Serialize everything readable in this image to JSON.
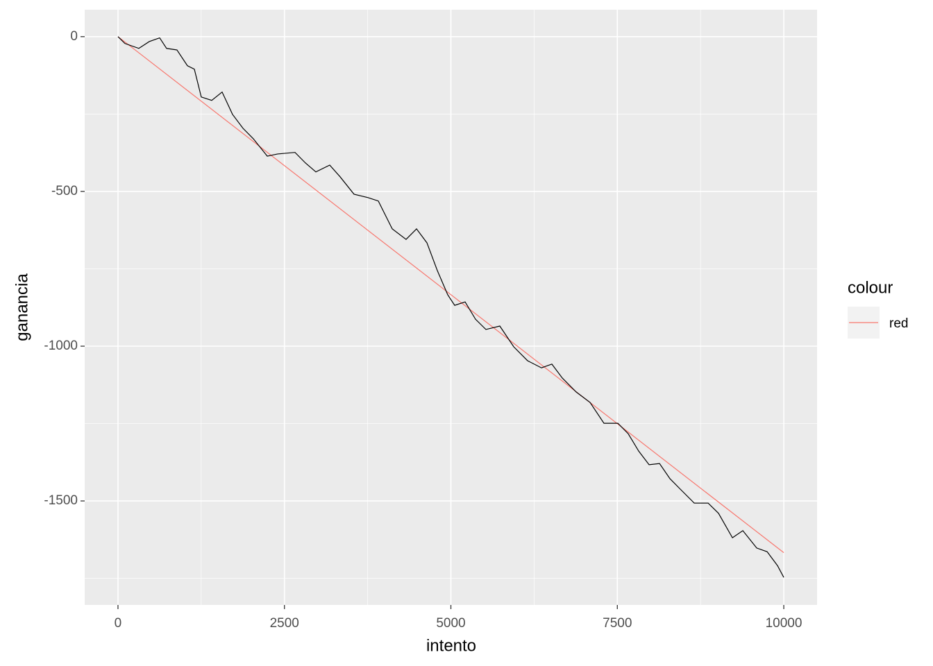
{
  "chart_data": {
    "type": "line",
    "x_label": "intento",
    "y_label": "ganancia",
    "x": [
      0,
      104,
      313,
      469,
      626,
      730,
      886,
      1043,
      1147,
      1251,
      1408,
      1564,
      1720,
      1877,
      2033,
      2242,
      2398,
      2659,
      2815,
      2972,
      3180,
      3337,
      3545,
      3754,
      3910,
      4119,
      4327,
      4484,
      4640,
      4797,
      4953,
      5057,
      5214,
      5370,
      5526,
      5735,
      5944,
      6152,
      6361,
      6517,
      6674,
      6882,
      7091,
      7299,
      7508,
      7664,
      7821,
      7977,
      8134,
      8290,
      8446,
      8655,
      8864,
      9020,
      9229,
      9385,
      9593,
      9750,
      9906,
      10000
    ],
    "values": [
      0,
      -22,
      -38,
      -16,
      -4,
      -38,
      -43,
      -94,
      -105,
      -195,
      -206,
      -179,
      -251,
      -296,
      -330,
      -386,
      -379,
      -374,
      -408,
      -437,
      -415,
      -453,
      -509,
      -520,
      -531,
      -621,
      -655,
      -621,
      -666,
      -756,
      -834,
      -868,
      -857,
      -913,
      -946,
      -935,
      -1002,
      -1047,
      -1070,
      -1058,
      -1103,
      -1148,
      -1182,
      -1249,
      -1249,
      -1283,
      -1339,
      -1383,
      -1379,
      -1428,
      -1462,
      -1507,
      -1507,
      -1540,
      -1619,
      -1596,
      -1652,
      -1664,
      -1709,
      -1747
    ],
    "color": "#000000",
    "legend_title": "colour",
    "series": [
      {
        "name": "red",
        "color": "#F8766D",
        "x": [
          0,
          10000
        ],
        "values": [
          0,
          -1667
        ]
      }
    ],
    "xlim": [
      -500,
      10500
    ],
    "ylim": [
      -1836,
      87
    ],
    "xticks": [
      0,
      2500,
      5000,
      7500,
      10000
    ],
    "yticks": [
      0,
      -500,
      -1000,
      -1500
    ],
    "grid": true
  }
}
